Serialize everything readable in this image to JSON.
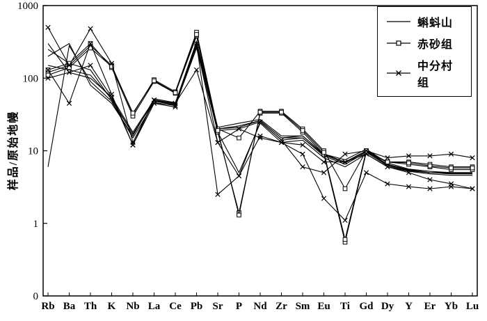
{
  "chart_data": {
    "type": "line",
    "title": "",
    "xlabel": "",
    "ylabel": "样品/原始地幔",
    "y_scale": "log",
    "ylim": [
      0.1,
      1000
    ],
    "y_ticks": [
      "1000",
      "100",
      "10",
      "1",
      "0"
    ],
    "y_tick_values": [
      1000,
      100,
      10,
      1,
      0.1
    ],
    "x_categories": [
      "Rb",
      "Ba",
      "Th",
      "K",
      "Nb",
      "La",
      "Ce",
      "Pb",
      "Sr",
      "P",
      "Nd",
      "Zr",
      "Sm",
      "Eu",
      "Ti",
      "Gd",
      "Dy",
      "Y",
      "Er",
      "Yb",
      "Lu"
    ],
    "grid": false,
    "legend_position": "top-right",
    "line_color": "#000000",
    "groups": [
      {
        "name": "蝌蚪山",
        "marker": "none",
        "lines": [
          [
            300,
            120,
            100,
            55,
            18,
            50,
            45,
            320,
            20,
            22,
            26,
            15,
            16,
            9,
            7,
            10,
            6.5,
            5.5,
            5,
            5,
            5
          ],
          [
            250,
            160,
            130,
            50,
            17,
            48,
            43,
            300,
            19,
            20,
            25,
            14,
            15,
            8.5,
            6.5,
            9.5,
            6.2,
            5.3,
            5,
            4.8,
            4.8
          ],
          [
            200,
            300,
            80,
            45,
            16,
            52,
            46,
            280,
            21,
            24,
            27,
            16,
            16,
            9,
            7.5,
            10.5,
            6.8,
            5.6,
            5.2,
            5,
            5
          ],
          [
            6,
            280,
            90,
            48,
            15,
            46,
            42,
            260,
            18,
            5,
            24,
            13,
            14,
            8,
            6,
            9,
            6,
            5.2,
            4.8,
            4.6,
            4.6
          ],
          [
            150,
            130,
            110,
            52,
            17,
            49,
            44,
            310,
            20,
            21,
            26,
            15,
            15,
            8.8,
            6.8,
            9.8,
            6.4,
            5.4,
            5,
            4.9,
            4.9
          ]
        ]
      },
      {
        "name": "赤砂组",
        "marker": "square",
        "lines": [
          [
            120,
            150,
            280,
            150,
            32,
            95,
            65,
            430,
            20,
            15,
            35,
            35,
            20,
            10,
            3,
            10,
            7,
            7,
            6.5,
            6,
            6
          ],
          [
            130,
            160,
            300,
            140,
            30,
            90,
            62,
            380,
            18,
            1.4,
            33,
            33,
            18,
            9,
            0.55,
            9.5,
            7,
            6.5,
            6,
            5.5,
            5.5
          ],
          [
            110,
            140,
            260,
            145,
            33,
            92,
            63,
            400,
            19,
            1.3,
            34,
            34,
            19,
            9.5,
            0.6,
            10,
            7,
            6.8,
            6.2,
            5.8,
            5.8
          ]
        ]
      },
      {
        "name": "中分村组",
        "marker": "x",
        "lines": [
          [
            500,
            150,
            480,
            160,
            13,
            50,
            45,
            130,
            13,
            4.5,
            16,
            13,
            9,
            2.2,
            1.1,
            5,
            3.5,
            3.2,
            3,
            3.2,
            3
          ],
          [
            130,
            45,
            300,
            60,
            12,
            45,
            40,
            300,
            2.5,
            4.5,
            25,
            14,
            6,
            5,
            9,
            10,
            8,
            8.5,
            8.5,
            9,
            8
          ],
          [
            100,
            120,
            150,
            55,
            12,
            50,
            42,
            280,
            13,
            20,
            15,
            13,
            12,
            7,
            7,
            9,
            6,
            5,
            4,
            3.5,
            3
          ]
        ]
      }
    ]
  }
}
